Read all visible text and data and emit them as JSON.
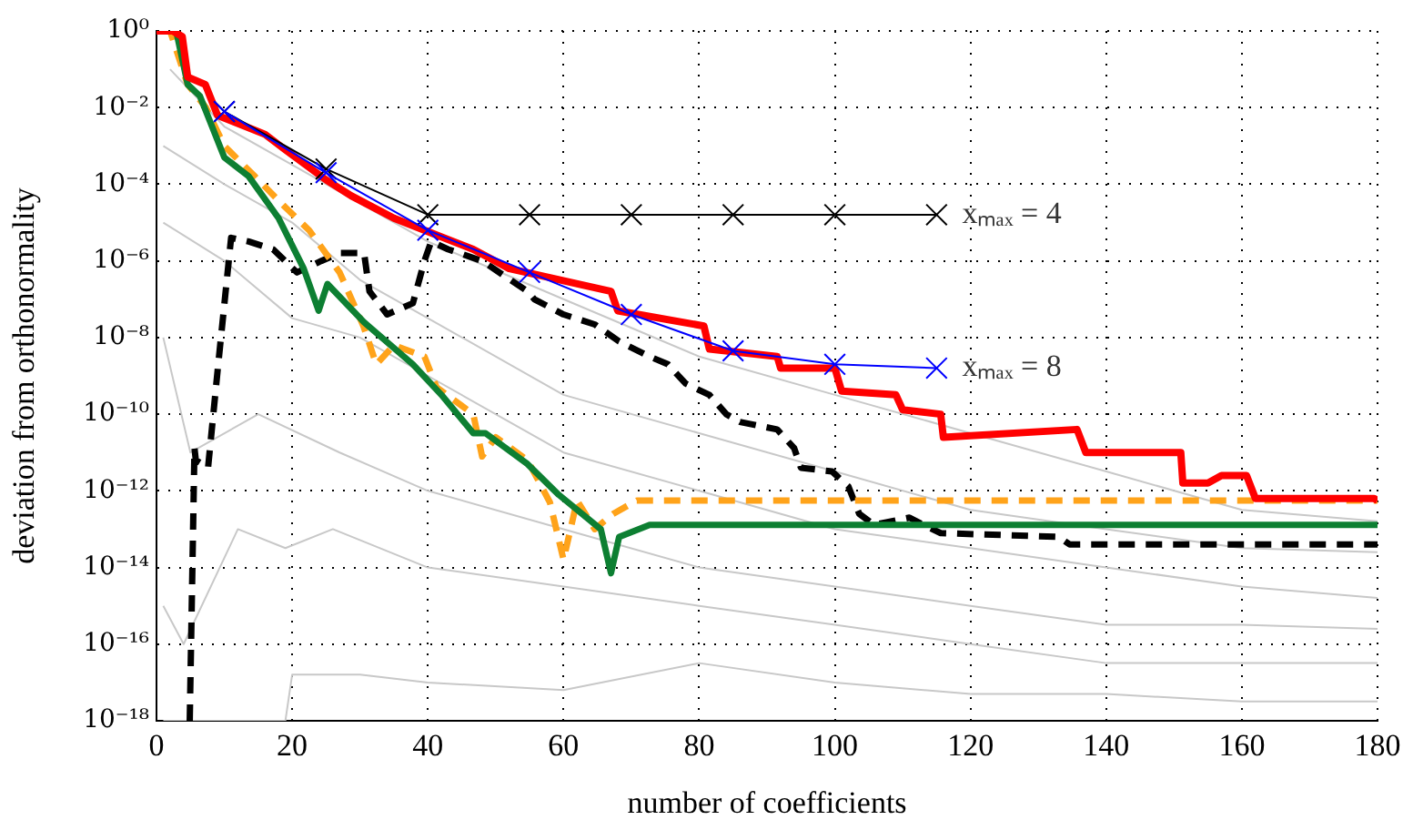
{
  "chart_data": {
    "type": "line",
    "xlabel": "number of coefficients",
    "ylabel": "deviation from orthonormality",
    "log": "y",
    "grid": true,
    "legend": false,
    "xlim": [
      0,
      180
    ],
    "xticks": [
      0,
      20,
      40,
      60,
      80,
      100,
      120,
      140,
      160,
      180
    ],
    "ylim": [
      1e-18,
      1
    ],
    "yticks": [
      {
        "value": 1,
        "label": "10⁰"
      },
      {
        "value": 0.01,
        "label": "10⁻²"
      },
      {
        "value": 0.0001,
        "label": "10⁻⁴"
      },
      {
        "value": 1e-06,
        "label": "10⁻⁶"
      },
      {
        "value": 1e-08,
        "label": "10⁻⁸"
      },
      {
        "value": 1e-10,
        "label": "10⁻¹⁰"
      },
      {
        "value": 1e-12,
        "label": "10⁻¹²"
      },
      {
        "value": 1e-14,
        "label": "10⁻¹⁴"
      },
      {
        "value": 1e-16,
        "label": "10⁻¹⁶"
      },
      {
        "value": 1e-18,
        "label": "10⁻¹⁸"
      }
    ],
    "series": [
      {
        "color": "#c8c8c8",
        "x": [
          2,
          10,
          20,
          30,
          40,
          60,
          80,
          100,
          120,
          140,
          160,
          180
        ],
        "values": [
          0.1,
          0.0032,
          0.00032,
          3.2e-05,
          3.2e-06,
          1e-07,
          3.2e-09,
          3.2e-10,
          3.2e-11,
          3.2e-12,
          3.2e-13,
          1.6e-13
        ]
      },
      {
        "color": "#c8c8c8",
        "x": [
          1,
          10,
          20,
          30,
          40,
          60,
          80,
          100,
          120,
          140,
          160,
          180
        ],
        "values": [
          0.001,
          0.0001,
          1e-05,
          3.2e-07,
          3.2e-08,
          3.2e-10,
          3.2e-11,
          3.2e-12,
          3.2e-13,
          1e-13,
          3.2e-14,
          2.5e-14
        ]
      },
      {
        "color": "#c8c8c8",
        "x": [
          1,
          10,
          20,
          30,
          40,
          60,
          80,
          100,
          120,
          140,
          160,
          180
        ],
        "values": [
          1e-05,
          1e-06,
          3.2e-08,
          1e-08,
          1e-09,
          1e-11,
          1e-12,
          1e-13,
          3.2e-14,
          1e-14,
          3.2e-15,
          1.6e-15
        ]
      },
      {
        "color": "#c8c8c8",
        "x": [
          1,
          5,
          15,
          27,
          40,
          60,
          80,
          100,
          120,
          140,
          160,
          180
        ],
        "values": [
          1e-08,
          1e-11,
          1e-10,
          1e-11,
          1e-12,
          1e-13,
          1e-14,
          3.2e-15,
          1e-15,
          3.2e-16,
          3.2e-16,
          2.5e-16
        ]
      },
      {
        "color": "#c8c8c8",
        "x": [
          1,
          4,
          12,
          19,
          26,
          40,
          60,
          80,
          100,
          120,
          140,
          160,
          180
        ],
        "values": [
          1e-15,
          1e-16,
          1e-13,
          3.2e-14,
          1e-13,
          1e-14,
          3.2e-15,
          1e-15,
          3.2e-16,
          1e-16,
          3.2e-17,
          3.2e-17,
          3.2e-17
        ]
      },
      {
        "color": "#c8c8c8",
        "x": [
          1,
          10,
          19,
          20,
          30,
          40,
          60,
          80,
          100,
          120,
          140,
          160,
          180
        ],
        "values": [
          1e-18,
          1e-18,
          1e-18,
          1.6e-17,
          1.6e-17,
          1e-17,
          6.3e-18,
          3.2e-17,
          1e-17,
          5e-18,
          5e-18,
          3.2e-18,
          3.2e-18
        ]
      },
      {
        "color": "#000000",
        "line_style": "dashed",
        "x": [
          4.9,
          5.6,
          5.8,
          7.6,
          9.1,
          11,
          13.6,
          17.2,
          20.7,
          24.3,
          27,
          30.6,
          31.4,
          34,
          37.8,
          39.5,
          40.5,
          43,
          48,
          54.7,
          55.7,
          60,
          64.6,
          68.2,
          72.7,
          75.4,
          78,
          81.5,
          84,
          86,
          91.5,
          94,
          95,
          99.6,
          102,
          103.6,
          105.8,
          111,
          113,
          115.6,
          133,
          134.6,
          180
        ],
        "values": [
          1e-18,
          1.3e-11,
          6.3e-12,
          4e-12,
          2e-09,
          4e-06,
          3.2e-06,
          2e-06,
          5e-07,
          1e-06,
          1.6e-06,
          1.6e-06,
          1.6e-07,
          4e-08,
          7.9e-08,
          1e-06,
          3.2e-06,
          2e-06,
          1e-06,
          1.6e-07,
          1e-07,
          4e-08,
          2.2e-08,
          7.9e-09,
          3.2e-09,
          2e-09,
          6.3e-10,
          3.2e-10,
          1e-10,
          6.3e-11,
          4e-11,
          1.3e-11,
          4e-12,
          3.2e-12,
          1.3e-12,
          2.5e-13,
          1.3e-13,
          2e-13,
          1.3e-13,
          7.9e-14,
          6.3e-14,
          4e-14,
          4e-14
        ]
      },
      {
        "color": "#ffa31a",
        "line_style": "dashed",
        "x": [
          1,
          2,
          4.6,
          7.3,
          10,
          14.5,
          19,
          22.5,
          27,
          30.5,
          32.4,
          35,
          39.5,
          41.3,
          46.7,
          48,
          50,
          54.7,
          58,
          60,
          62,
          64.6,
          67.3,
          70.8,
          180
        ],
        "values": [
          1,
          1,
          0.04,
          0.01,
          0.001,
          0.00016,
          2.5e-05,
          6.3e-06,
          5e-07,
          2e-08,
          2e-09,
          6.3e-09,
          3.2e-09,
          5e-10,
          1e-10,
          7.9e-12,
          2.5e-11,
          6.3e-12,
          5e-13,
          1.6e-14,
          5.6e-13,
          1e-13,
          2.5e-13,
          5.6e-13,
          5.6e-13
        ]
      },
      {
        "color": "#0d7f32",
        "x": [
          2.9,
          4.6,
          6.4,
          10,
          13.6,
          18,
          21.7,
          23.9,
          25.2,
          30.6,
          37.8,
          42,
          46.7,
          48.5,
          54.7,
          59.3,
          65.5,
          67,
          68.2,
          72.7,
          180
        ],
        "values": [
          1,
          0.04,
          0.02,
          0.0005,
          0.00016,
          1.3e-05,
          6.3e-07,
          5e-08,
          2.5e-07,
          2.5e-08,
          2e-09,
          3.2e-10,
          3.2e-11,
          3.2e-11,
          5e-12,
          7.9e-13,
          1e-13,
          7.1e-15,
          6.3e-14,
          1.3e-13,
          1.3e-13
        ]
      },
      {
        "color": "#ff0000",
        "x": [
          0,
          2.4,
          3.8,
          4.6,
          7.2,
          9,
          16,
          19,
          25,
          28.7,
          35,
          39.5,
          46.7,
          52,
          67,
          68,
          80.7,
          81.5,
          91.5,
          92,
          100,
          101,
          109,
          110,
          115.6,
          116,
          135.7,
          137,
          151,
          151.3,
          155,
          157,
          160.7,
          162,
          179.5,
          180
        ],
        "values": [
          1,
          1,
          0.71,
          0.063,
          0.04,
          0.0063,
          0.002,
          0.00079,
          0.00013,
          5e-05,
          1.3e-05,
          6.3e-06,
          2e-06,
          6.3e-07,
          1.6e-07,
          5e-08,
          2e-08,
          5e-09,
          3.2e-09,
          1.6e-09,
          1.6e-09,
          4e-10,
          3.2e-10,
          1.3e-10,
          1e-10,
          2.5e-11,
          4e-11,
          1e-11,
          1e-11,
          1.6e-12,
          1.6e-12,
          2.5e-12,
          2.5e-12,
          6.3e-13,
          6.3e-13,
          5.6e-13
        ]
      },
      {
        "name": "xₘₐₓ = 4",
        "color": "#000000",
        "marker": "cross",
        "x": [
          10,
          25,
          40,
          55,
          70,
          85,
          100,
          115
        ],
        "values": [
          0.0079,
          0.00025,
          1.6e-05,
          1.6e-05,
          1.6e-05,
          1.6e-05,
          1.6e-05,
          1.6e-05
        ]
      },
      {
        "name": "xₘₐₓ = 8",
        "color": "#0000ff",
        "marker": "cross",
        "x": [
          10,
          25,
          40,
          55,
          70,
          85,
          100,
          115
        ],
        "values": [
          0.0079,
          0.0002,
          6.3e-06,
          5e-07,
          4e-08,
          4.5e-09,
          2e-09,
          1.6e-09
        ]
      }
    ]
  }
}
